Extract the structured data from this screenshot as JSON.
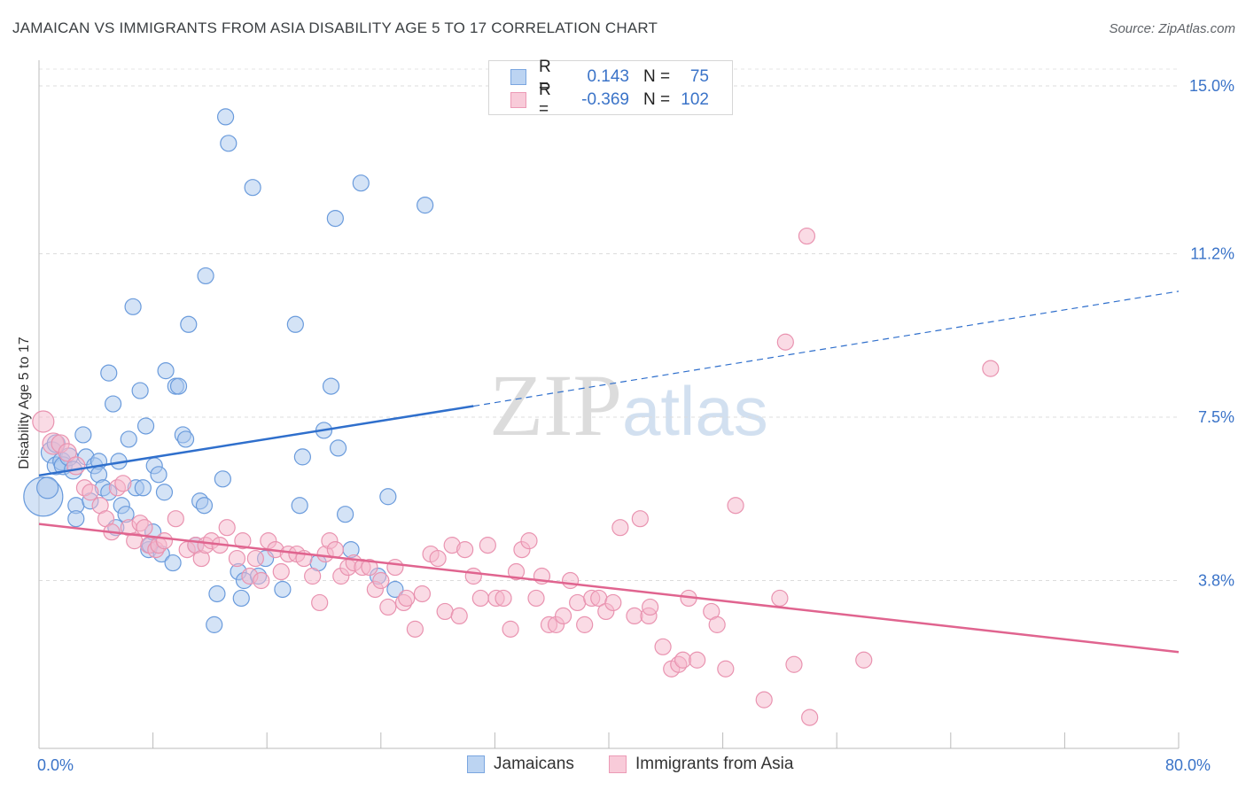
{
  "title": "JAMAICAN VS IMMIGRANTS FROM ASIA DISABILITY AGE 5 TO 17 CORRELATION CHART",
  "source": "Source: ZipAtlas.com",
  "watermark": {
    "zip": "ZIP",
    "atlas": "atlas"
  },
  "legend": {
    "rows": [
      {
        "r_label": "R =",
        "r_value": "0.143",
        "n_label": "N =",
        "n_value": "75",
        "color": "#a9c7ee"
      },
      {
        "r_label": "R =",
        "r_value": "-0.369",
        "n_label": "N =",
        "n_value": "102",
        "color": "#f5b8cc"
      }
    ]
  },
  "bottom_legend": [
    {
      "label": "Jamaicans",
      "color": "#a9c7ee"
    },
    {
      "label": "Immigrants from Asia",
      "color": "#f5b8cc"
    }
  ],
  "chart_data": {
    "type": "scatter",
    "ylabel": "Disability Age 5 to 17",
    "xlim": [
      0,
      80
    ],
    "ylim": [
      0,
      15.0
    ],
    "x_tick_labels": [
      {
        "value": 0,
        "label": "0.0%"
      },
      {
        "value": 80,
        "label": "80.0%"
      }
    ],
    "y_tick_labels": [
      {
        "value": 3.8,
        "label": "3.8%"
      },
      {
        "value": 7.5,
        "label": "7.5%"
      },
      {
        "value": 11.2,
        "label": "11.2%"
      },
      {
        "value": 15.0,
        "label": "15.0%"
      }
    ],
    "grid": true,
    "series": [
      {
        "name": "Jamaicans",
        "color": "#6a9bdc",
        "fill": "#a9c7ee",
        "trend": {
          "x0": 0,
          "y0": 6.18,
          "x1": 30.5,
          "y1": 7.75,
          "dashed_to_x": 80,
          "dashed_to_y": 10.35,
          "color": "#2f6fcc"
        },
        "points": [
          [
            0.3,
            5.7,
            22
          ],
          [
            0.6,
            5.9,
            12
          ],
          [
            0.9,
            6.7,
            12
          ],
          [
            1.2,
            6.9,
            10
          ],
          [
            1.2,
            6.4,
            10
          ],
          [
            1.6,
            6.5,
            10
          ],
          [
            1.7,
            6.4,
            10
          ],
          [
            2.1,
            6.6,
            10
          ],
          [
            2.4,
            6.3,
            10
          ],
          [
            2.6,
            5.5,
            9
          ],
          [
            2.6,
            5.2,
            9
          ],
          [
            3.1,
            7.1,
            9
          ],
          [
            3.3,
            6.6,
            9
          ],
          [
            3.6,
            5.6,
            9
          ],
          [
            3.9,
            6.4,
            9
          ],
          [
            4.2,
            6.5,
            9
          ],
          [
            4.2,
            6.2,
            9
          ],
          [
            4.5,
            5.9,
            9
          ],
          [
            4.9,
            5.8,
            9
          ],
          [
            4.9,
            8.5,
            9
          ],
          [
            5.2,
            7.8,
            9
          ],
          [
            5.4,
            5.0,
            9
          ],
          [
            5.6,
            6.5,
            9
          ],
          [
            5.8,
            5.5,
            9
          ],
          [
            6.1,
            5.3,
            9
          ],
          [
            6.3,
            7.0,
            9
          ],
          [
            6.6,
            10.0,
            9
          ],
          [
            6.8,
            5.9,
            9
          ],
          [
            7.1,
            8.1,
            9
          ],
          [
            7.3,
            5.9,
            9
          ],
          [
            7.5,
            7.3,
            9
          ],
          [
            7.7,
            4.5,
            9
          ],
          [
            7.8,
            4.6,
            9
          ],
          [
            8.0,
            4.9,
            9
          ],
          [
            8.1,
            6.4,
            9
          ],
          [
            8.4,
            6.2,
            9
          ],
          [
            8.6,
            4.4,
            9
          ],
          [
            8.8,
            5.8,
            9
          ],
          [
            8.9,
            8.55,
            9
          ],
          [
            9.4,
            4.2,
            9
          ],
          [
            9.6,
            8.2,
            9
          ],
          [
            9.8,
            8.2,
            9
          ],
          [
            10.1,
            7.1,
            9
          ],
          [
            10.3,
            7.0,
            9
          ],
          [
            10.5,
            9.6,
            9
          ],
          [
            11.0,
            4.6,
            9
          ],
          [
            11.3,
            5.6,
            9
          ],
          [
            11.6,
            5.5,
            9
          ],
          [
            11.7,
            10.7,
            9
          ],
          [
            12.5,
            3.5,
            9
          ],
          [
            12.3,
            2.8,
            9
          ],
          [
            12.9,
            6.1,
            9
          ],
          [
            13.1,
            14.3,
            9
          ],
          [
            13.3,
            13.7,
            9
          ],
          [
            14.0,
            4.0,
            9
          ],
          [
            14.2,
            3.4,
            9
          ],
          [
            14.4,
            3.8,
            9
          ],
          [
            15.0,
            12.7,
            9
          ],
          [
            15.4,
            3.9,
            9
          ],
          [
            15.9,
            4.3,
            9
          ],
          [
            17.1,
            3.6,
            9
          ],
          [
            18.0,
            9.6,
            9
          ],
          [
            18.3,
            5.5,
            9
          ],
          [
            18.5,
            6.6,
            9
          ],
          [
            19.6,
            4.2,
            9
          ],
          [
            20.0,
            7.2,
            9
          ],
          [
            20.5,
            8.2,
            9
          ],
          [
            20.8,
            12.0,
            9
          ],
          [
            21.0,
            6.8,
            9
          ],
          [
            21.5,
            5.3,
            9
          ],
          [
            21.9,
            4.5,
            9
          ],
          [
            22.6,
            12.8,
            9
          ],
          [
            23.8,
            3.9,
            9
          ],
          [
            24.5,
            5.7,
            9
          ],
          [
            25.0,
            3.6,
            9
          ],
          [
            27.1,
            12.3,
            9
          ]
        ]
      },
      {
        "name": "Immigrants from Asia",
        "color": "#e993b0",
        "fill": "#f5b8cc",
        "trend": {
          "x0": 0,
          "y0": 5.08,
          "x1": 80,
          "y1": 2.18,
          "color": "#e0648f"
        },
        "points": [
          [
            0.3,
            7.4,
            12
          ],
          [
            1.0,
            6.9,
            12
          ],
          [
            1.5,
            6.9,
            10
          ],
          [
            2.0,
            6.7,
            10
          ],
          [
            2.6,
            6.4,
            10
          ],
          [
            3.2,
            5.9,
            9
          ],
          [
            3.6,
            5.8,
            9
          ],
          [
            4.3,
            5.5,
            9
          ],
          [
            4.7,
            5.2,
            9
          ],
          [
            5.1,
            4.9,
            9
          ],
          [
            5.5,
            5.9,
            9
          ],
          [
            5.9,
            6.0,
            9
          ],
          [
            6.3,
            5.0,
            9
          ],
          [
            6.7,
            4.7,
            9
          ],
          [
            7.1,
            5.1,
            9
          ],
          [
            7.4,
            5.0,
            9
          ],
          [
            7.7,
            4.6,
            9
          ],
          [
            8.2,
            4.5,
            9
          ],
          [
            8.4,
            4.6,
            9
          ],
          [
            8.8,
            4.7,
            9
          ],
          [
            9.6,
            5.2,
            9
          ],
          [
            10.4,
            4.5,
            9
          ],
          [
            11.0,
            4.6,
            9
          ],
          [
            11.4,
            4.3,
            9
          ],
          [
            11.7,
            4.6,
            9
          ],
          [
            12.1,
            4.7,
            9
          ],
          [
            12.7,
            4.6,
            9
          ],
          [
            13.2,
            5.0,
            9
          ],
          [
            13.9,
            4.3,
            9
          ],
          [
            14.3,
            4.7,
            9
          ],
          [
            14.8,
            3.9,
            9
          ],
          [
            15.2,
            4.3,
            9
          ],
          [
            15.6,
            3.8,
            9
          ],
          [
            16.1,
            4.7,
            9
          ],
          [
            16.6,
            4.5,
            9
          ],
          [
            17.0,
            4.0,
            9
          ],
          [
            17.5,
            4.4,
            9
          ],
          [
            18.1,
            4.4,
            9
          ],
          [
            18.6,
            4.3,
            9
          ],
          [
            19.2,
            3.9,
            9
          ],
          [
            19.7,
            3.3,
            9
          ],
          [
            20.1,
            4.4,
            9
          ],
          [
            20.4,
            4.7,
            9
          ],
          [
            20.8,
            4.5,
            9
          ],
          [
            21.2,
            3.9,
            9
          ],
          [
            21.7,
            4.1,
            9
          ],
          [
            22.1,
            4.2,
            9
          ],
          [
            22.7,
            4.1,
            9
          ],
          [
            23.2,
            4.1,
            9
          ],
          [
            23.6,
            3.6,
            9
          ],
          [
            24.0,
            3.8,
            9
          ],
          [
            24.5,
            3.2,
            9
          ],
          [
            25.0,
            4.1,
            9
          ],
          [
            25.6,
            3.3,
            9
          ],
          [
            25.8,
            3.4,
            9
          ],
          [
            26.4,
            2.7,
            9
          ],
          [
            26.9,
            3.5,
            9
          ],
          [
            27.5,
            4.4,
            9
          ],
          [
            28.0,
            4.3,
            9
          ],
          [
            28.5,
            3.1,
            9
          ],
          [
            29.0,
            4.6,
            9
          ],
          [
            29.5,
            3.0,
            9
          ],
          [
            29.9,
            4.5,
            9
          ],
          [
            30.5,
            3.9,
            9
          ],
          [
            31.0,
            3.4,
            9
          ],
          [
            31.5,
            4.6,
            9
          ],
          [
            32.1,
            3.4,
            9
          ],
          [
            32.6,
            3.4,
            9
          ],
          [
            33.1,
            2.7,
            9
          ],
          [
            33.5,
            4.0,
            9
          ],
          [
            33.9,
            4.5,
            9
          ],
          [
            34.4,
            4.7,
            9
          ],
          [
            34.9,
            3.4,
            9
          ],
          [
            35.3,
            3.9,
            9
          ],
          [
            35.8,
            2.8,
            9
          ],
          [
            36.3,
            2.8,
            9
          ],
          [
            36.8,
            3.0,
            9
          ],
          [
            37.3,
            3.8,
            9
          ],
          [
            37.8,
            3.3,
            9
          ],
          [
            38.3,
            2.8,
            9
          ],
          [
            38.8,
            3.4,
            9
          ],
          [
            39.3,
            3.4,
            9
          ],
          [
            39.8,
            3.1,
            9
          ],
          [
            40.3,
            3.3,
            9
          ],
          [
            40.8,
            5.0,
            9
          ],
          [
            41.8,
            3.0,
            9
          ],
          [
            42.2,
            5.2,
            9
          ],
          [
            42.8,
            3.0,
            9
          ],
          [
            42.9,
            3.2,
            9
          ],
          [
            43.8,
            2.3,
            9
          ],
          [
            44.4,
            1.8,
            9
          ],
          [
            44.9,
            1.9,
            9
          ],
          [
            45.2,
            2.0,
            9
          ],
          [
            45.6,
            3.4,
            9
          ],
          [
            46.2,
            2.0,
            9
          ],
          [
            47.2,
            3.1,
            9
          ],
          [
            47.6,
            2.8,
            9
          ],
          [
            48.2,
            1.8,
            9
          ],
          [
            48.9,
            5.5,
            9
          ],
          [
            50.9,
            1.1,
            9
          ],
          [
            52.0,
            3.4,
            9
          ],
          [
            52.4,
            9.2,
            9
          ],
          [
            53.0,
            1.9,
            9
          ],
          [
            53.9,
            11.6,
            9
          ],
          [
            54.1,
            0.7,
            9
          ],
          [
            57.9,
            2.0,
            9
          ],
          [
            66.8,
            8.6,
            9
          ]
        ]
      }
    ]
  }
}
